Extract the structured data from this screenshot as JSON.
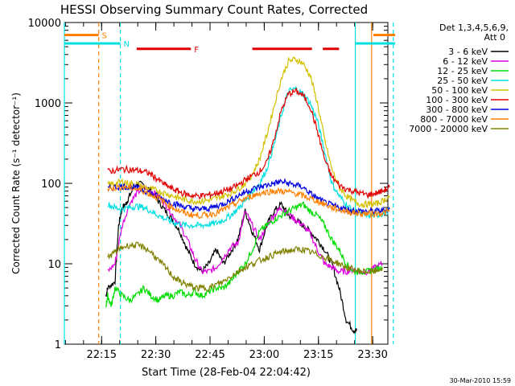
{
  "chart_data": {
    "type": "line",
    "title": "HESSI Observing Summary Count Rates, Corrected",
    "xlabel": "Start Time (28-Feb-04 22:04:42)",
    "ylabel": "Corrected Count Rate (s⁻¹ detector⁻¹)",
    "y_scale": "log",
    "ylim": [
      1,
      10000
    ],
    "xlim_minutes": [
      0,
      60
    ],
    "x_ticks": [
      {
        "min": 10.3,
        "label": "22:15"
      },
      {
        "min": 25.3,
        "label": "22:30"
      },
      {
        "min": 40.3,
        "label": "22:45"
      },
      {
        "min": 55.3,
        "label": "23:00"
      },
      {
        "min": 70.3,
        "label": "23:15"
      },
      {
        "min": 85.3,
        "label": "23:30"
      }
    ],
    "y_ticks": [
      {
        "value": 1,
        "label": "1"
      },
      {
        "value": 10,
        "label": "10"
      },
      {
        "value": 100,
        "label": "100"
      },
      {
        "value": 1000,
        "label": "1000"
      },
      {
        "value": 10000,
        "label": "10000"
      }
    ],
    "legend": {
      "placement": "right",
      "header": [
        "Det 1,3,4,5,6,9,",
        "Att 0"
      ],
      "entries": [
        {
          "label": "3 - 6 keV",
          "color": "#000000"
        },
        {
          "label": "6 - 12 keV",
          "color": "#e000e0"
        },
        {
          "label": "12 - 25 keV",
          "color": "#00dd00"
        },
        {
          "label": "25 - 50 keV",
          "color": "#00e0e0"
        },
        {
          "label": "50 - 100 keV",
          "color": "#d4c000"
        },
        {
          "label": "100 - 300 keV",
          "color": "#e00000"
        },
        {
          "label": "300 - 800 keV",
          "color": "#0000e0"
        },
        {
          "label": "800 - 7000 keV",
          "color": "#ff8000"
        },
        {
          "label": "7000 - 20000 keV",
          "color": "#808000"
        }
      ]
    },
    "time_minutes": [
      0,
      2,
      4,
      6,
      8,
      10,
      12,
      14,
      16,
      18,
      20,
      22,
      24,
      26,
      28,
      30,
      32,
      34,
      36,
      38,
      40,
      42,
      44,
      46,
      48,
      50,
      52,
      54,
      56,
      58,
      60,
      62,
      64,
      66,
      68,
      70,
      72,
      74,
      76,
      78,
      80,
      82,
      84,
      86,
      88,
      90
    ],
    "series": [
      {
        "name": "3 - 6 keV",
        "color": "#000000",
        "t": [
          11.5,
          12,
          14,
          15,
          16,
          17,
          18,
          20,
          22,
          24,
          26,
          28,
          30,
          32,
          34,
          36,
          38,
          40,
          42,
          44,
          46,
          48,
          50,
          52,
          54,
          56,
          58,
          60,
          62,
          64,
          66,
          68,
          70,
          72,
          74,
          76,
          78,
          80,
          81
        ],
        "values": [
          4,
          5,
          6,
          30,
          50,
          55,
          70,
          100,
          95,
          80,
          60,
          45,
          35,
          25,
          15,
          10,
          8,
          10,
          15,
          10,
          14,
          20,
          45,
          25,
          15,
          30,
          45,
          55,
          40,
          35,
          30,
          25,
          20,
          15,
          10,
          5,
          2,
          1.5,
          1.5
        ]
      },
      {
        "name": "6 - 12 keV",
        "color": "#e000e0",
        "t": [
          12,
          14,
          16,
          18,
          20,
          22,
          24,
          26,
          28,
          30,
          32,
          34,
          36,
          38,
          40,
          42,
          44,
          46,
          48,
          50,
          52,
          54,
          56,
          58,
          60,
          62,
          64,
          66,
          68,
          70,
          72,
          74,
          76,
          78,
          80,
          82,
          84,
          86,
          88
        ],
        "values": [
          8,
          10,
          30,
          55,
          75,
          90,
          80,
          70,
          55,
          40,
          30,
          20,
          12,
          8,
          8,
          9,
          12,
          16,
          18,
          45,
          30,
          20,
          30,
          40,
          50,
          42,
          35,
          30,
          24,
          15,
          10,
          9,
          8,
          8,
          8.5,
          8,
          8,
          9,
          10
        ]
      },
      {
        "name": "12 - 25 keV",
        "color": "#00dd00",
        "t": [
          11.5,
          12,
          13,
          14,
          16,
          18,
          20,
          22,
          24,
          26,
          28,
          30,
          32,
          34,
          36,
          38,
          40,
          42,
          44,
          46,
          48,
          50,
          52,
          54,
          56,
          58,
          60,
          62,
          64,
          66,
          68,
          70,
          72,
          74,
          76,
          78,
          80,
          82,
          84,
          86,
          88
        ],
        "values": [
          3,
          4,
          3,
          5,
          4,
          3.5,
          4,
          5,
          4,
          3.5,
          4,
          4,
          4.5,
          4,
          4.5,
          4,
          4.5,
          5,
          5,
          6,
          8,
          10,
          15,
          25,
          30,
          35,
          40,
          45,
          50,
          55,
          45,
          40,
          30,
          20,
          15,
          10,
          8,
          8,
          8,
          8.5,
          9
        ]
      },
      {
        "name": "25 - 50 keV",
        "color": "#00e0e0",
        "t": [
          12,
          14,
          16,
          18,
          20,
          22,
          24,
          26,
          28,
          30,
          32,
          34,
          36,
          38,
          40,
          42,
          44,
          46,
          48,
          50,
          52,
          54,
          56,
          58,
          60,
          62,
          64,
          66,
          68,
          70,
          72,
          74,
          76,
          78,
          80,
          82,
          84,
          86,
          88,
          90
        ],
        "values": [
          55,
          50,
          48,
          50,
          52,
          50,
          45,
          40,
          36,
          33,
          31,
          30,
          30,
          30,
          31,
          32,
          35,
          40,
          48,
          60,
          80,
          100,
          150,
          300,
          700,
          1400,
          1500,
          1300,
          1000,
          600,
          250,
          100,
          70,
          55,
          45,
          42,
          40,
          40,
          42,
          45
        ]
      },
      {
        "name": "50 - 100 keV",
        "color": "#d4c000",
        "t": [
          12,
          14,
          16,
          18,
          20,
          22,
          24,
          26,
          28,
          30,
          32,
          34,
          36,
          38,
          40,
          42,
          44,
          46,
          48,
          50,
          52,
          54,
          56,
          58,
          60,
          62,
          64,
          66,
          68,
          70,
          72,
          74,
          76,
          78,
          80,
          82,
          84,
          86,
          88,
          90
        ],
        "values": [
          95,
          100,
          105,
          100,
          98,
          90,
          85,
          80,
          75,
          70,
          65,
          62,
          60,
          60,
          62,
          65,
          70,
          75,
          85,
          100,
          130,
          200,
          400,
          900,
          2000,
          3300,
          3500,
          3100,
          2200,
          1000,
          350,
          150,
          90,
          70,
          60,
          55,
          55,
          55,
          60,
          70
        ]
      },
      {
        "name": "100 - 300 keV",
        "color": "#e00000",
        "t": [
          12,
          14,
          16,
          18,
          20,
          22,
          24,
          26,
          28,
          30,
          32,
          34,
          36,
          38,
          40,
          42,
          44,
          46,
          48,
          50,
          52,
          54,
          56,
          58,
          60,
          62,
          64,
          66,
          68,
          70,
          72,
          74,
          76,
          78,
          80,
          82,
          84,
          86,
          88,
          90
        ],
        "values": [
          140,
          145,
          150,
          148,
          145,
          140,
          130,
          110,
          95,
          85,
          78,
          72,
          70,
          70,
          72,
          75,
          80,
          85,
          95,
          110,
          125,
          140,
          180,
          350,
          800,
          1300,
          1400,
          1250,
          900,
          450,
          200,
          120,
          95,
          85,
          80,
          75,
          72,
          75,
          80,
          90
        ]
      },
      {
        "name": "300 - 800 keV",
        "color": "#0000e0",
        "t": [
          12,
          14,
          16,
          18,
          20,
          22,
          24,
          26,
          28,
          30,
          32,
          34,
          36,
          38,
          40,
          42,
          44,
          46,
          48,
          50,
          52,
          54,
          56,
          58,
          60,
          62,
          64,
          66,
          68,
          70,
          72,
          74,
          76,
          78,
          80,
          82,
          84,
          86,
          88,
          90
        ],
        "values": [
          85,
          90,
          92,
          90,
          88,
          82,
          75,
          68,
          62,
          57,
          53,
          50,
          48,
          48,
          49,
          52,
          56,
          62,
          70,
          78,
          85,
          90,
          95,
          100,
          105,
          100,
          95,
          90,
          75,
          65,
          58,
          53,
          50,
          48,
          46,
          45,
          45,
          45,
          46,
          48
        ]
      },
      {
        "name": "800 - 7000 keV",
        "color": "#ff8000",
        "t": [
          12,
          14,
          16,
          18,
          20,
          22,
          24,
          26,
          28,
          30,
          32,
          34,
          36,
          38,
          40,
          42,
          44,
          46,
          48,
          50,
          52,
          54,
          56,
          58,
          60,
          62,
          64,
          66,
          68,
          70,
          72,
          74,
          76,
          78,
          80,
          82,
          84,
          86,
          88,
          90
        ],
        "values": [
          85,
          88,
          90,
          88,
          85,
          80,
          72,
          65,
          57,
          50,
          45,
          42,
          40,
          40,
          41,
          43,
          47,
          52,
          58,
          65,
          70,
          75,
          78,
          80,
          80,
          78,
          75,
          70,
          65,
          60,
          55,
          50,
          47,
          45,
          43,
          42,
          42,
          42,
          43,
          45
        ]
      },
      {
        "name": "7000 - 20000 keV",
        "color": "#808000",
        "t": [
          12,
          14,
          16,
          18,
          20,
          22,
          24,
          26,
          28,
          30,
          32,
          34,
          36,
          38,
          40,
          42,
          44,
          46,
          48,
          50,
          52,
          54,
          56,
          58,
          60,
          62,
          64,
          66,
          68,
          70,
          72,
          74,
          76,
          78,
          80,
          82,
          84,
          86,
          88
        ],
        "values": [
          12,
          14,
          16,
          17,
          17,
          16,
          14,
          11,
          9,
          7,
          6,
          5.5,
          5,
          5,
          5,
          5.5,
          6,
          7,
          8,
          9,
          10,
          11,
          12,
          13,
          14,
          14.5,
          15,
          15,
          14,
          13,
          12,
          11,
          10,
          9,
          8.5,
          8,
          8,
          8,
          9
        ]
      }
    ],
    "vertical_markers": [
      {
        "min": 0,
        "color": "#00e0e0",
        "style": "solid"
      },
      {
        "min": 9.5,
        "color": "#ff8000",
        "style": "dashed"
      },
      {
        "min": 15.5,
        "color": "#00e0e0",
        "style": "dashed"
      },
      {
        "min": 80.5,
        "color": "#00e0e0",
        "style": "solid"
      },
      {
        "min": 85.0,
        "color": "#ff8000",
        "style": "solid"
      },
      {
        "min": 91.0,
        "color": "#00e0e0",
        "style": "dashed"
      }
    ],
    "flag_bars": [
      {
        "label": "S",
        "color": "#ff8000",
        "y_value": 7000,
        "segments": [
          [
            0,
            9.5
          ],
          [
            85.5,
            91.5
          ]
        ]
      },
      {
        "label": "N",
        "color": "#00e0e0",
        "y_value": 5500,
        "segments": [
          [
            0,
            15.5
          ],
          [
            80.5,
            91.5
          ]
        ]
      },
      {
        "label": "F",
        "color": "#e00000",
        "y_value": 4700,
        "segments": [
          [
            20,
            35
          ],
          [
            52,
            68.5
          ],
          [
            71.5,
            76
          ]
        ]
      }
    ],
    "footer_date": "30-Mar-2010 15:59"
  }
}
